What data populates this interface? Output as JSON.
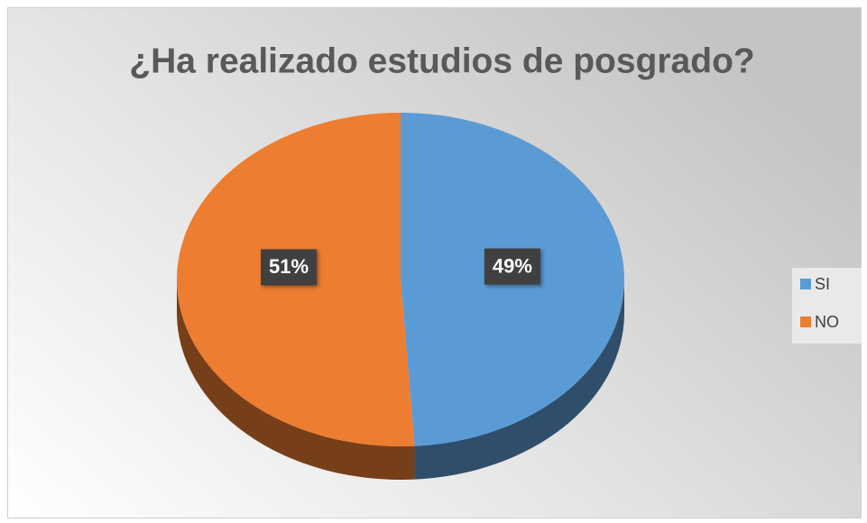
{
  "chart_data": {
    "type": "pie",
    "title": "¿Ha realizado estudios de posgrado?",
    "categories": [
      "SI",
      "NO"
    ],
    "values": [
      49,
      51
    ],
    "value_labels": [
      "49%",
      "51%"
    ],
    "colors": [
      "#5b9bd5",
      "#ed7d31"
    ],
    "legend": "right"
  }
}
